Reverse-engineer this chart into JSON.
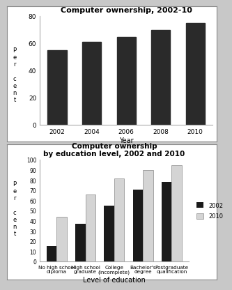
{
  "chart1": {
    "title": "Computer ownership, 2002-10",
    "years": [
      2002,
      2004,
      2006,
      2008,
      2010
    ],
    "values": [
      55,
      61,
      65,
      70,
      75
    ],
    "bar_color": "#2a2a2a",
    "xlabel": "Year",
    "ylim": [
      0,
      80
    ],
    "yticks": [
      0,
      20,
      40,
      60,
      80
    ],
    "ylabel_chars": [
      "P",
      "e",
      "r",
      " ",
      "c",
      "e",
      "n",
      "t"
    ]
  },
  "chart2": {
    "title": "Computer ownership\nby education level, 2002 and 2010",
    "categories": [
      "No high school\ndiploma",
      "High school\ngraduate",
      "College\n(incomplete)",
      "Bachelor's\ndegree",
      "Postgraduate\nqualification"
    ],
    "values_2002": [
      15,
      37,
      55,
      71,
      78
    ],
    "values_2010": [
      44,
      66,
      82,
      90,
      95
    ],
    "color_2002": "#1a1a1a",
    "color_2010": "#d4d4d4",
    "xlabel": "Level of education",
    "ylim": [
      0,
      100
    ],
    "yticks": [
      0,
      10,
      20,
      30,
      40,
      50,
      60,
      70,
      80,
      90,
      100
    ],
    "legend_2002": "2002",
    "legend_2010": "2010",
    "ylabel_chars": [
      "P",
      "e",
      "r",
      " ",
      "c",
      "e",
      "n",
      "t"
    ]
  },
  "panel_bg": "#ffffff",
  "fig_bg": "#c8c8c8",
  "border_color": "#888888"
}
